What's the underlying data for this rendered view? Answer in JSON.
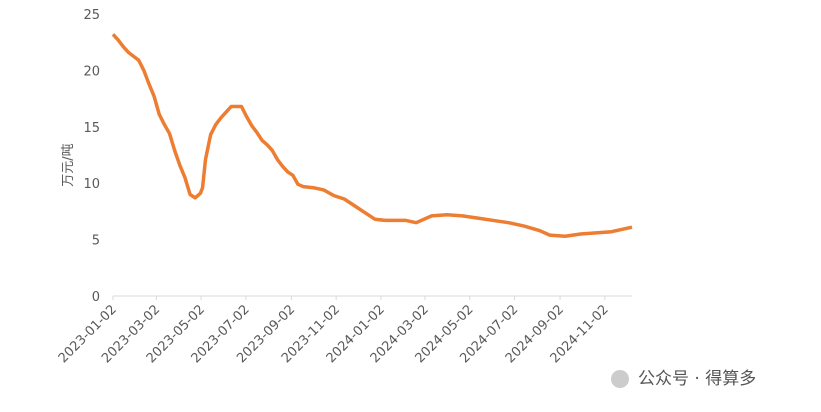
{
  "chart_data": {
    "type": "line",
    "y_label": "万元/吨",
    "annotation": "公众号 · 得算多",
    "color": "#ed7d31",
    "x": [
      "2023-01-02",
      "2023-01-09",
      "2023-01-16",
      "2023-01-23",
      "2023-02-06",
      "2023-02-13",
      "2023-02-20",
      "2023-02-27",
      "2023-03-06",
      "2023-03-13",
      "2023-03-20",
      "2023-03-27",
      "2023-04-03",
      "2023-04-10",
      "2023-04-17",
      "2023-04-24",
      "2023-05-01",
      "2023-05-04",
      "2023-05-08",
      "2023-05-15",
      "2023-05-22",
      "2023-05-29",
      "2023-06-05",
      "2023-06-12",
      "2023-06-26",
      "2023-07-03",
      "2023-07-10",
      "2023-07-17",
      "2023-07-24",
      "2023-07-31",
      "2023-08-07",
      "2023-08-14",
      "2023-08-21",
      "2023-08-28",
      "2023-09-04",
      "2023-09-11",
      "2023-09-18",
      "2023-10-02",
      "2023-10-16",
      "2023-10-30",
      "2023-11-13",
      "2023-11-27",
      "2023-12-11",
      "2023-12-25",
      "2024-01-08",
      "2024-02-05",
      "2024-02-19",
      "2024-02-26",
      "2024-03-11",
      "2024-04-01",
      "2024-04-22",
      "2024-05-13",
      "2024-06-03",
      "2024-06-24",
      "2024-07-15",
      "2024-08-05",
      "2024-08-19",
      "2024-09-09",
      "2024-09-30",
      "2024-10-21",
      "2024-11-11",
      "2024-11-25",
      "2024-12-09"
    ],
    "values": [
      23.2,
      22.7,
      22.1,
      21.6,
      20.9,
      20.0,
      18.8,
      17.7,
      16.1,
      15.2,
      14.4,
      12.9,
      11.6,
      10.5,
      9.0,
      8.7,
      9.1,
      9.6,
      12.1,
      14.3,
      15.2,
      15.8,
      16.3,
      16.8,
      16.8,
      15.9,
      15.1,
      14.5,
      13.8,
      13.4,
      12.9,
      12.1,
      11.5,
      11.0,
      10.7,
      9.9,
      9.7,
      9.6,
      9.4,
      8.9,
      8.6,
      8.0,
      7.4,
      6.8,
      6.7,
      6.7,
      6.5,
      6.7,
      7.1,
      7.2,
      7.1,
      6.9,
      6.7,
      6.5,
      6.2,
      5.8,
      5.4,
      5.3,
      5.5,
      5.6,
      5.7,
      5.9,
      6.1
    ],
    "xlim": [
      "2023-01-02",
      "2024-12-09"
    ],
    "xticks": [
      "2023-01-02",
      "2023-03-02",
      "2023-05-02",
      "2023-07-02",
      "2023-09-02",
      "2023-11-02",
      "2024-01-02",
      "2024-03-02",
      "2024-05-02",
      "2024-07-02",
      "2024-09-02",
      "2024-11-02"
    ],
    "ylim": [
      0,
      25
    ],
    "yticks": [
      0,
      5,
      10,
      15,
      20,
      25
    ]
  }
}
